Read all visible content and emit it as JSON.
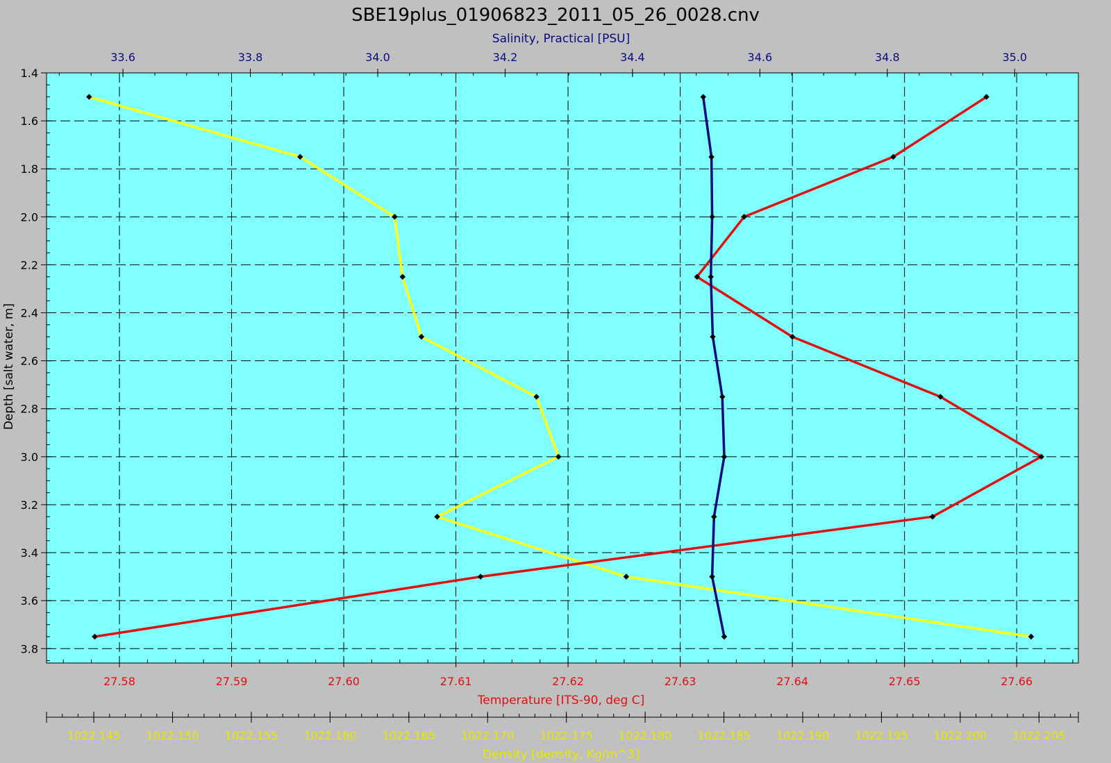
{
  "chart_data": {
    "type": "line",
    "title": "SBE19plus_01906823_2011_05_26_0028.cnv",
    "colors": {
      "background": "#c0c0c0",
      "plot_area": "#80ffff",
      "salinity": "#0a0a80",
      "temperature": "#e01010",
      "density": "#ffff10",
      "markers": "#000000"
    },
    "grid": true,
    "y_axis": {
      "label": "Depth [salt water, m]",
      "range": [
        1.4,
        3.86
      ],
      "inverted": true,
      "ticks": [
        "1.4",
        "1.6",
        "1.8",
        "2.0",
        "2.2",
        "2.4",
        "2.6",
        "2.8",
        "3.0",
        "3.2",
        "3.4",
        "3.6",
        "3.8"
      ]
    },
    "x_axes": [
      {
        "id": "salinity",
        "position": "top",
        "label": "Salinity, Practical [PSU]",
        "range": [
          33.48,
          35.1
        ],
        "ticks": [
          "33.6",
          "33.8",
          "34.0",
          "34.2",
          "34.4",
          "34.6",
          "34.8",
          "35.0"
        ]
      },
      {
        "id": "temperature",
        "position": "bottom",
        "label": "Temperature [ITS-90, deg C]",
        "range": [
          27.5735,
          27.6655
        ],
        "ticks": [
          "27.58",
          "27.59",
          "27.60",
          "27.61",
          "27.62",
          "27.63",
          "27.64",
          "27.65",
          "27.66"
        ]
      },
      {
        "id": "density",
        "position": "bottom-offset",
        "label": "Density [density, Kg/m^3]",
        "range": [
          1022.142,
          1022.2075
        ],
        "ticks": [
          "1022.145",
          "1022.150",
          "1022.155",
          "1022.160",
          "1022.165",
          "1022.170",
          "1022.175",
          "1022.180",
          "1022.185",
          "1022.190",
          "1022.195",
          "1022.200",
          "1022.205"
        ]
      }
    ],
    "depth": [
      1.5,
      1.75,
      2.0,
      2.25,
      2.5,
      2.75,
      3.0,
      3.25,
      3.5,
      3.75
    ],
    "series": [
      {
        "axis": "salinity",
        "values": [
          34.511,
          34.524,
          34.525,
          34.523,
          34.526,
          34.541,
          34.544,
          34.528,
          34.525,
          34.544
        ]
      },
      {
        "axis": "temperature",
        "values": [
          27.6573,
          27.649,
          27.6357,
          27.6315,
          27.64,
          27.6532,
          27.6622,
          27.6525,
          27.6122,
          27.5778
        ]
      },
      {
        "axis": "density",
        "values": [
          1022.1447,
          1022.1581,
          1022.1641,
          1022.1646,
          1022.1658,
          1022.1731,
          1022.1745,
          1022.1668,
          1022.1788,
          1022.2045
        ]
      }
    ]
  }
}
